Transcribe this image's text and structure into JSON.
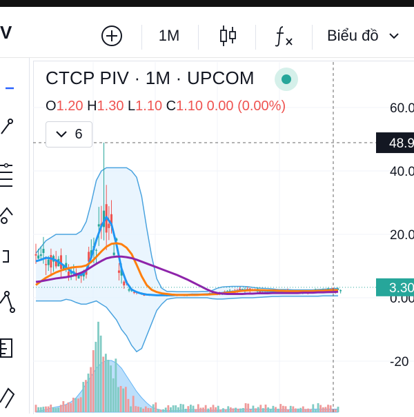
{
  "header": {
    "symbol_fragment": "V",
    "interval": "1M",
    "chart_type_label": "Biểu đồ",
    "icons": [
      "add-circle-icon",
      "candlestick-icon",
      "fx-icon",
      "chevron-down-icon"
    ]
  },
  "toolbar_icons": [
    "cursor-icon",
    "trend-line-icon",
    "fib-icon",
    "brush-icon",
    "text-icon",
    "pattern-icon",
    "measure-icon",
    "magnet-icon"
  ],
  "legend": {
    "title": "CTCP PIV · 1M · UPCOM",
    "o_label": "O",
    "o_value": "1.20",
    "h_label": "H",
    "h_value": "1.30",
    "l_label": "L",
    "l_value": "1.10",
    "c_label": "C",
    "c_value": "1.10",
    "change": "0.00 (0.00%)",
    "indicators_count": "6"
  },
  "price_scale": {
    "ticks": [
      "60.0",
      "40.0",
      "20.0",
      "0.00",
      "-20"
    ],
    "crosshair_label": "48.9",
    "last_price_label": "3.30"
  },
  "colors": {
    "up": "#26a69a",
    "down": "#ef5350",
    "ma_fast": "#2196f3",
    "ma_mid": "#ff7f0e",
    "ma_slow": "#8e24aa",
    "band": "#4aa3df",
    "volume_area": "#90caf9",
    "accent": "#26a69a"
  },
  "chart_data": {
    "type": "line",
    "title": "CTCP PIV · 1M · UPCOM",
    "ylim": [
      -25,
      65
    ],
    "x": [
      0,
      1,
      2,
      3,
      4,
      5,
      6,
      7,
      8,
      9,
      10,
      11,
      12,
      13,
      14,
      15,
      16,
      17,
      18,
      19,
      20,
      21,
      22,
      23,
      24,
      25,
      26,
      27,
      28,
      29,
      30,
      31,
      32,
      33,
      34,
      35,
      36,
      37,
      38,
      39,
      40,
      41,
      42,
      43,
      44,
      45,
      46,
      47,
      48,
      49,
      50,
      51,
      52,
      53,
      54,
      55,
      56,
      57,
      58,
      59,
      60
    ],
    "series": [
      {
        "name": "",
        "values": [
          11.5,
          12.0,
          12.6,
          12.4,
          11.8,
          10.8,
          9.6,
          8.3,
          7.4,
          7.2,
          8.6,
          12.8,
          18.2,
          22.6,
          25.5,
          23.2,
          16.8,
          9.2,
          4.8,
          2.6,
          1.8,
          1.3,
          1.0,
          0.9,
          0.8,
          0.8,
          0.8,
          0.8,
          0.9,
          0.9,
          0.9,
          1.0,
          1.0,
          1.0,
          1.1,
          1.2,
          1.3,
          1.5,
          1.7,
          1.9,
          2.1,
          2.3,
          2.4,
          2.4,
          2.3,
          2.2,
          2.1,
          2.1,
          2.0,
          2.0,
          2.0,
          1.9,
          1.9,
          1.9,
          1.9,
          2.0,
          2.1,
          2.2,
          2.3,
          2.4,
          2.5
        ]
      },
      {
        "name": "",
        "values": [
          4.0,
          5.2,
          6.3,
          7.2,
          8.0,
          8.6,
          9.1,
          9.5,
          9.7,
          9.8,
          10.2,
          11.3,
          12.9,
          14.6,
          16.1,
          17.0,
          17.2,
          16.9,
          15.8,
          13.8,
          10.4,
          6.8,
          4.0,
          2.5,
          1.8,
          1.4,
          1.2,
          1.0,
          0.9,
          0.9,
          0.9,
          0.9,
          0.9,
          1.0,
          1.0,
          1.1,
          1.2,
          1.4,
          1.6,
          1.8,
          2.0,
          2.2,
          2.3,
          2.4,
          2.4,
          2.4,
          2.3,
          2.3,
          2.2,
          2.2,
          2.1,
          2.1,
          2.1,
          2.1,
          2.1,
          2.1,
          2.2,
          2.2,
          2.3,
          2.4,
          2.4
        ]
      },
      {
        "name": "",
        "values": [
          5.0,
          5.2,
          5.5,
          5.8,
          6.1,
          6.3,
          6.5,
          6.8,
          7.3,
          7.9,
          8.7,
          9.7,
          10.7,
          11.6,
          12.4,
          12.8,
          13.0,
          13.0,
          12.8,
          12.5,
          12.0,
          11.4,
          10.8,
          10.2,
          9.6,
          9.0,
          8.4,
          7.8,
          7.2,
          6.5,
          5.8,
          5.0,
          4.2,
          3.4,
          2.6,
          1.9,
          1.5,
          1.3,
          1.2,
          1.2,
          1.2,
          1.2,
          1.3,
          1.3,
          1.4,
          1.4,
          1.4,
          1.5,
          1.5,
          1.5,
          1.5,
          1.5,
          1.5,
          1.6,
          1.6,
          1.6,
          1.7,
          1.7,
          1.8,
          1.8,
          1.9
        ]
      }
    ],
    "bollinger_upper": [
      14,
      16,
      18,
      19,
      20,
      20,
      20,
      20,
      20,
      21,
      24,
      30,
      37,
      40,
      41,
      41,
      41,
      41,
      41,
      40,
      38,
      32,
      22,
      13,
      6,
      3,
      2.0,
      2.0,
      1.9,
      1.9,
      1.9,
      1.9,
      1.9,
      2.0,
      2.0,
      2.3,
      3.0,
      3.4,
      3.5,
      3.6,
      3.6,
      3.6,
      3.5,
      3.3,
      3.1,
      3.0,
      2.9,
      2.8,
      2.6,
      2.6,
      2.6,
      2.5,
      2.5,
      2.5,
      2.5,
      2.5,
      2.6,
      2.7,
      2.8,
      2.9,
      3.0
    ],
    "bollinger_lower": [
      -1,
      -1,
      -1,
      -1,
      -1,
      -1,
      -0.5,
      -0.8,
      -1.5,
      -2,
      -2,
      -1.5,
      -1,
      -2,
      -3,
      -5,
      -7,
      -10,
      -12,
      -15,
      -17,
      -16,
      -12,
      -8,
      -4,
      -2,
      -0.5,
      -0.2,
      0,
      0,
      0,
      0,
      0,
      0,
      0,
      -0.3,
      -0.4,
      -0.4,
      -0.3,
      -0.2,
      -0.1,
      0,
      0,
      0,
      0.1,
      0.2,
      0.3,
      0.4,
      0.4,
      0.5,
      0.5,
      0.5,
      0.5,
      0.5,
      0.5,
      0.5,
      0.5,
      0.6,
      0.6,
      0.6,
      0.6
    ],
    "price_high_peak": 48.9,
    "last_price": 3.3,
    "volume_area": [
      0.02,
      0.03,
      0.05,
      0.08,
      0.1,
      0.12,
      0.15,
      0.2,
      0.28,
      0.4,
      0.55,
      0.7,
      0.85,
      0.95,
      1.0,
      1.0,
      0.95,
      0.85,
      0.7,
      0.55,
      0.4,
      0.28,
      0.18,
      0.1,
      0.06,
      0.04,
      0.03,
      0.03,
      0.03,
      0.04,
      0.05,
      0.05,
      0.05,
      0.05,
      0.04,
      0.04,
      0.04,
      0.05,
      0.05,
      0.06,
      0.06,
      0.06,
      0.06,
      0.06,
      0.06,
      0.06,
      0.06,
      0.06,
      0.05,
      0.05,
      0.05,
      0.05,
      0.05,
      0.05,
      0.05,
      0.06,
      0.06,
      0.06,
      0.06,
      0.06,
      0.06
    ]
  }
}
